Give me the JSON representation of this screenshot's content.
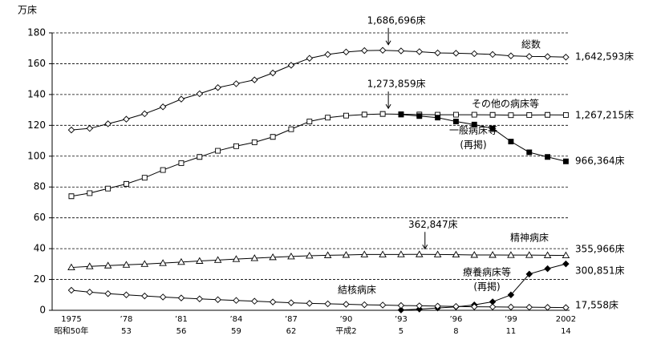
{
  "chart_data": {
    "type": "line",
    "unit_label": "万床",
    "x": [
      1975,
      1976,
      1977,
      1978,
      1979,
      1980,
      1981,
      1982,
      1983,
      1984,
      1985,
      1986,
      1987,
      1988,
      1989,
      1990,
      1991,
      1992,
      1993,
      1994,
      1995,
      1996,
      1997,
      1998,
      1999,
      2000,
      2001,
      2002
    ],
    "xlim": [
      1973.95,
      2002.2
    ],
    "xticks": [
      {
        "value": 1975,
        "label": "1975"
      },
      {
        "value": 1978,
        "label": "’78"
      },
      {
        "value": 1981,
        "label": "’81"
      },
      {
        "value": 1984,
        "label": "’84"
      },
      {
        "value": 1987,
        "label": "’87"
      },
      {
        "value": 1990,
        "label": "’90"
      },
      {
        "value": 1993,
        "label": "’93"
      },
      {
        "value": 1996,
        "label": "’96"
      },
      {
        "value": 1999,
        "label": "’99"
      },
      {
        "value": 2002,
        "label": "2002"
      }
    ],
    "xtick_sublabels": [
      "昭和50年",
      "53",
      "56",
      "59",
      "62",
      "平成2",
      "5",
      "8",
      "11",
      "14"
    ],
    "ylim": [
      0,
      180
    ],
    "yticks": [
      0,
      20,
      40,
      60,
      80,
      100,
      120,
      140,
      160,
      180
    ],
    "grid": true,
    "series": [
      {
        "name": "総数",
        "marker": "diamond-open",
        "color": "#000000",
        "end_label": "1,642,593床",
        "values": [
          117,
          118,
          121,
          124,
          127.5,
          132,
          137,
          140.5,
          144.5,
          147,
          149.5,
          154,
          159,
          163.5,
          166,
          167.6,
          168.5,
          168.6696,
          168.3,
          167.8,
          167,
          166.8,
          166.5,
          166,
          165.1,
          164.7,
          164.6,
          164.2593
        ]
      },
      {
        "name": "その他の病床等",
        "marker": "square-open",
        "color": "#000000",
        "end_label": "1,267,215床",
        "values": [
          74,
          76,
          79,
          82,
          86,
          91,
          95.5,
          99.5,
          103.5,
          106.5,
          109,
          112.5,
          117.5,
          122.5,
          125,
          126.3,
          127,
          127.3859,
          127.2,
          127,
          126.9,
          126.9,
          126.9,
          126.8,
          126.6,
          126.7,
          126.8,
          126.7215
        ]
      },
      {
        "name": "一般病床等",
        "note": "(再掲)",
        "marker": "square-filled",
        "color": "#000000",
        "end_label": "966,364床",
        "values": [
          null,
          null,
          null,
          null,
          null,
          null,
          null,
          null,
          null,
          null,
          null,
          null,
          null,
          null,
          null,
          null,
          null,
          null,
          127,
          126,
          125,
          122.5,
          120.5,
          118,
          109.5,
          102.5,
          99.5,
          96.6364
        ]
      },
      {
        "name": "精神病床",
        "marker": "triangle-open",
        "color": "#000000",
        "end_label": "355,966床",
        "values": [
          27.8,
          28.5,
          29,
          29.5,
          30,
          30.6,
          31.3,
          32,
          32.6,
          33.2,
          33.8,
          34.4,
          34.9,
          35.4,
          35.7,
          35.9,
          36.2,
          36.2,
          36.25,
          36.2847,
          36.2,
          36.1,
          35.9,
          35.9,
          35.8,
          35.8,
          35.7,
          35.5966
        ]
      },
      {
        "name": "療養病床等",
        "note": "(再掲)",
        "marker": "diamond-filled",
        "color": "#000000",
        "end_label": "300,851床",
        "values": [
          null,
          null,
          null,
          null,
          null,
          null,
          null,
          null,
          null,
          null,
          null,
          null,
          null,
          null,
          null,
          null,
          null,
          null,
          0.2,
          0.8,
          1.5,
          2.2,
          3.5,
          5.5,
          10,
          23.5,
          27,
          30.0851
        ]
      },
      {
        "name": "結核病床",
        "marker": "diamond-open",
        "color": "#000000",
        "end_label": "17,558床",
        "values": [
          13,
          11.8,
          10.8,
          10,
          9.3,
          8.6,
          8,
          7.4,
          6.9,
          6.4,
          5.9,
          5.4,
          4.9,
          4.5,
          4.2,
          3.9,
          3.6,
          3.4,
          3.1,
          2.9,
          2.7,
          2.5,
          2.3,
          2.2,
          2.1,
          2,
          1.9,
          1.7558
        ]
      }
    ],
    "annotations": [
      {
        "text": "1,686,696床",
        "x": 1992,
        "value": 168.6696
      },
      {
        "text": "1,273,859床",
        "x": 1992,
        "value": 127.3859
      },
      {
        "text": "362,847床",
        "x": 1994,
        "value": 36.2847
      }
    ]
  }
}
